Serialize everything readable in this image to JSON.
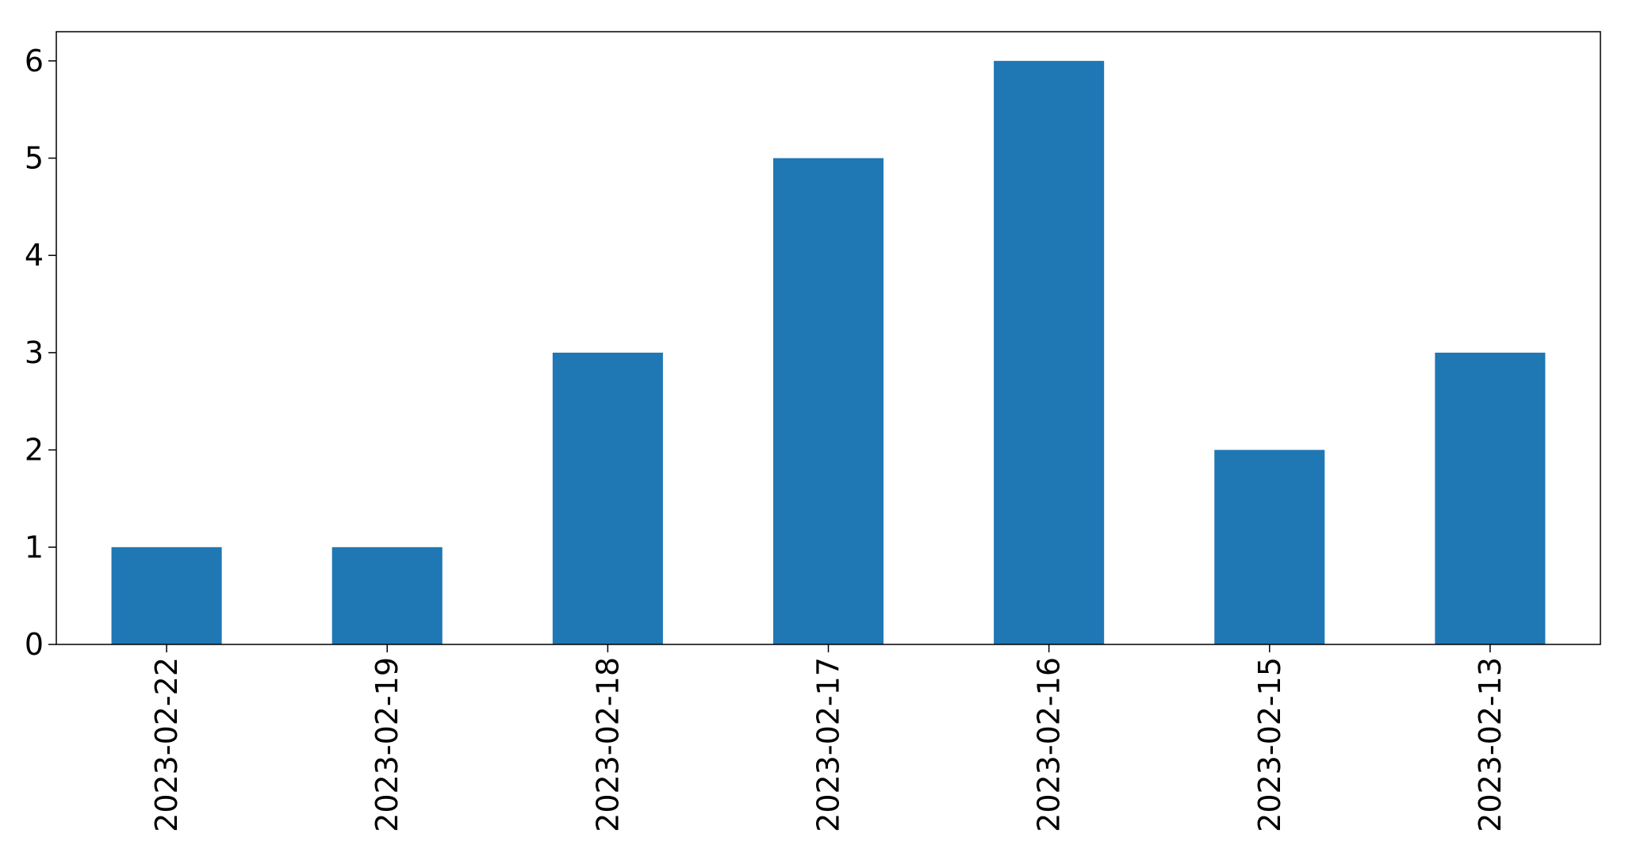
{
  "chart_data": {
    "type": "bar",
    "title": "",
    "xlabel": "",
    "ylabel": "",
    "categories": [
      "2023-02-22",
      "2023-02-19",
      "2023-02-18",
      "2023-02-17",
      "2023-02-16",
      "2023-02-15",
      "2023-02-13"
    ],
    "values": [
      1,
      1,
      3,
      5,
      6,
      2,
      3
    ],
    "ylim": [
      0,
      6.3
    ],
    "yticks": [
      0,
      1,
      2,
      3,
      4,
      5,
      6
    ],
    "ytick_labels": [
      "0",
      "1",
      "2",
      "3",
      "4",
      "5",
      "6"
    ],
    "grid": false,
    "legend": "none",
    "bar_color": "#1f77b4",
    "x_tick_rotation": "vertical"
  }
}
